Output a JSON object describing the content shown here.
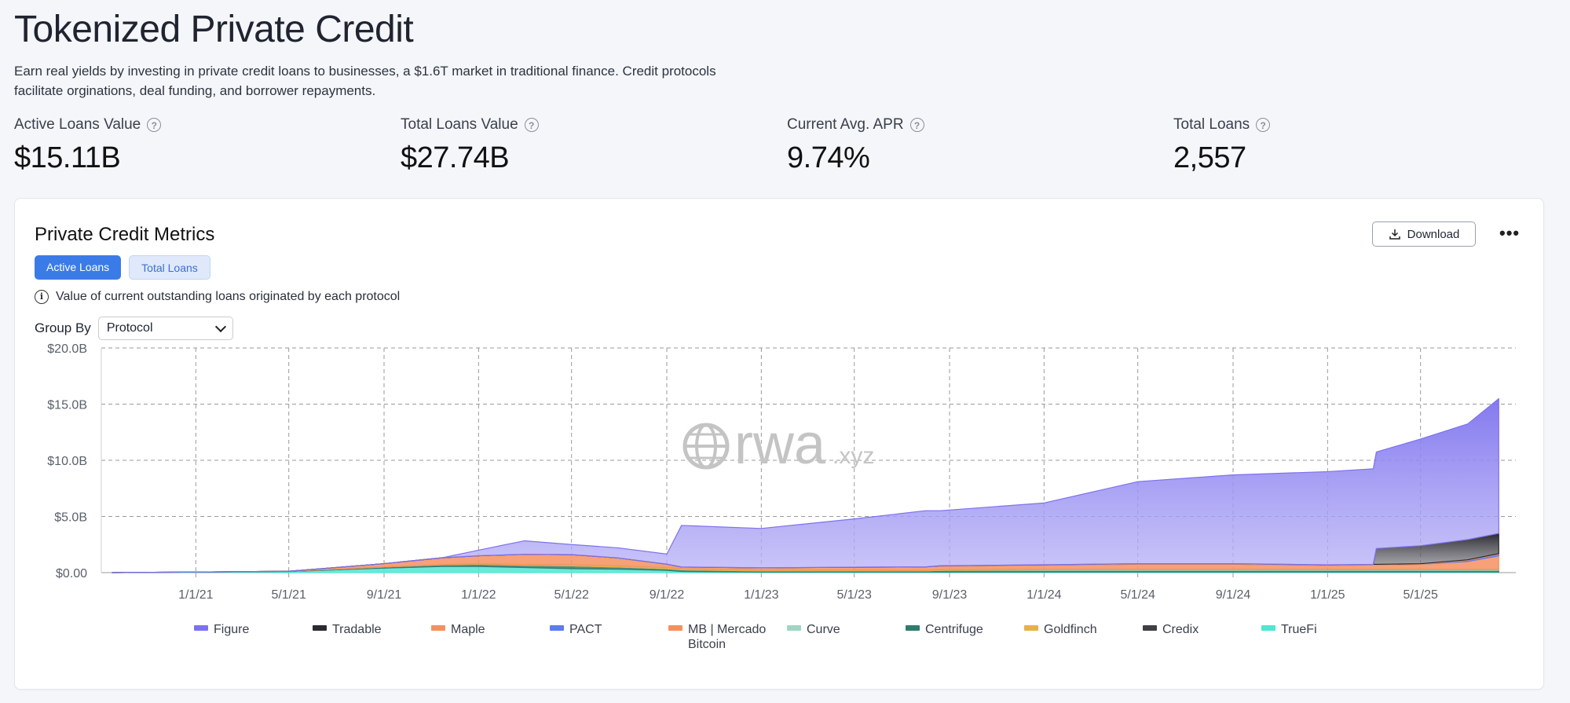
{
  "page": {
    "title": "Tokenized Private Credit",
    "description": "Earn real yields by investing in private credit loans to businesses, a $1.6T market in traditional finance. Credit protocols facilitate orginations, deal funding, and borrower repayments."
  },
  "stats": [
    {
      "label": "Active Loans Value",
      "value": "$15.11B"
    },
    {
      "label": "Total Loans Value",
      "value": "$27.74B"
    },
    {
      "label": "Current Avg. APR",
      "value": "9.74%"
    },
    {
      "label": "Total Loans",
      "value": "2,557"
    }
  ],
  "help_icon": "?",
  "card": {
    "title": "Private Credit Metrics",
    "download_label": "Download",
    "more_icon": "•••",
    "tabs": [
      {
        "label": "Active Loans",
        "active": true
      },
      {
        "label": "Total Loans",
        "active": false
      }
    ],
    "info_text": "Value of current outstanding loans originated by each protocol",
    "group_by_label": "Group By",
    "group_by_value": "Protocol"
  },
  "watermark": {
    "main": "rwa",
    "suffix": ".xyz"
  },
  "colors": {
    "figure": "#7d72ee",
    "tradable": "#2b2b33",
    "maple": "#f59160",
    "pact": "#5c7cf0",
    "mb_mercado": "#f5905e",
    "curve": "#9fd6c3",
    "centrifuge": "#2f7c6e",
    "goldfinch": "#e8b04a",
    "credix": "#3f3f46",
    "truefi": "#4fe6d2"
  },
  "chart_data": {
    "type": "area",
    "stacked": true,
    "y_ticks": [
      "$20.0B",
      "$15.0B",
      "$10.0B",
      "$5.0B",
      "$0.00"
    ],
    "ylim": [
      0,
      20
    ],
    "x_ticks": [
      "1/1/21",
      "5/1/21",
      "9/1/21",
      "1/1/22",
      "5/1/22",
      "9/1/22",
      "1/1/23",
      "5/1/23",
      "9/1/23",
      "1/1/24",
      "5/1/24",
      "9/1/24",
      "1/1/25",
      "5/1/25"
    ],
    "x_range": [
      "2020-09-01",
      "2025-09-01"
    ],
    "grid": true,
    "legend_position": "bottom",
    "x": [
      "2020-09-15",
      "2021-01-01",
      "2021-05-01",
      "2021-09-01",
      "2021-11-15",
      "2022-01-01",
      "2022-03-01",
      "2022-05-01",
      "2022-07-01",
      "2022-09-01",
      "2022-09-20",
      "2023-01-01",
      "2023-05-01",
      "2023-08-01",
      "2023-08-20",
      "2024-01-01",
      "2024-05-01",
      "2024-09-01",
      "2025-01-01",
      "2025-03-01",
      "2025-03-05",
      "2025-05-01",
      "2025-07-01",
      "2025-08-10"
    ],
    "series": [
      {
        "name": "TrueFi",
        "values": [
          0.0,
          0.05,
          0.1,
          0.4,
          0.55,
          0.55,
          0.45,
          0.35,
          0.3,
          0.2,
          0.1,
          0.05,
          0.05,
          0.05,
          0.05,
          0.05,
          0.05,
          0.05,
          0.05,
          0.05,
          0.05,
          0.05,
          0.05,
          0.05
        ]
      },
      {
        "name": "Centrifuge",
        "values": [
          0.0,
          0.0,
          0.02,
          0.1,
          0.15,
          0.2,
          0.2,
          0.25,
          0.2,
          0.15,
          0.15,
          0.1,
          0.1,
          0.1,
          0.15,
          0.15,
          0.15,
          0.15,
          0.15,
          0.15,
          0.15,
          0.15,
          0.15,
          0.15
        ]
      },
      {
        "name": "Curve",
        "values": [
          0.0,
          0.0,
          0.0,
          0.0,
          0.0,
          0.0,
          0.0,
          0.0,
          0.0,
          0.0,
          0.0,
          0.0,
          0.0,
          0.0,
          0.0,
          0.05,
          0.05,
          0.05,
          0.05,
          0.05,
          0.05,
          0.05,
          0.05,
          0.05
        ]
      },
      {
        "name": "Goldfinch",
        "values": [
          0.0,
          0.0,
          0.0,
          0.0,
          0.02,
          0.05,
          0.08,
          0.1,
          0.1,
          0.1,
          0.1,
          0.08,
          0.08,
          0.06,
          0.06,
          0.05,
          0.05,
          0.05,
          0.04,
          0.04,
          0.04,
          0.04,
          0.04,
          0.04
        ]
      },
      {
        "name": "Maple",
        "values": [
          0.0,
          0.0,
          0.0,
          0.3,
          0.6,
          0.7,
          0.9,
          0.9,
          0.7,
          0.3,
          0.15,
          0.2,
          0.25,
          0.3,
          0.3,
          0.35,
          0.45,
          0.45,
          0.35,
          0.4,
          0.4,
          0.45,
          0.7,
          1.2
        ]
      },
      {
        "name": "PACT",
        "values": [
          0.0,
          0.0,
          0.0,
          0.0,
          0.0,
          0.0,
          0.0,
          0.0,
          0.0,
          0.0,
          0.0,
          0.0,
          0.0,
          0.0,
          0.0,
          0.0,
          0.0,
          0.0,
          0.0,
          0.0,
          0.0,
          0.0,
          0.1,
          0.15
        ]
      },
      {
        "name": "MB | Mercado Bitcoin",
        "values": [
          0.0,
          0.0,
          0.0,
          0.0,
          0.0,
          0.0,
          0.0,
          0.0,
          0.0,
          0.0,
          0.0,
          0.0,
          0.0,
          0.0,
          0.05,
          0.05,
          0.05,
          0.05,
          0.05,
          0.05,
          0.05,
          0.05,
          0.05,
          0.05
        ]
      },
      {
        "name": "Credix",
        "values": [
          0.0,
          0.0,
          0.0,
          0.0,
          0.0,
          0.0,
          0.0,
          0.0,
          0.0,
          0.0,
          0.0,
          0.0,
          0.0,
          0.0,
          0.0,
          0.0,
          0.0,
          0.0,
          0.0,
          0.0,
          0.0,
          0.0,
          0.0,
          0.0
        ]
      },
      {
        "name": "Tradable",
        "values": [
          0.0,
          0.0,
          0.0,
          0.0,
          0.0,
          0.0,
          0.0,
          0.0,
          0.0,
          0.0,
          0.0,
          0.0,
          0.0,
          0.0,
          0.0,
          0.0,
          0.0,
          0.0,
          0.0,
          0.0,
          1.4,
          1.6,
          1.8,
          1.8
        ]
      },
      {
        "name": "Figure",
        "values": [
          0.0,
          0.0,
          0.0,
          0.0,
          0.0,
          0.5,
          1.2,
          0.9,
          0.9,
          0.9,
          3.7,
          3.5,
          4.3,
          5.0,
          4.9,
          5.5,
          7.3,
          7.9,
          8.3,
          8.5,
          8.6,
          9.5,
          10.3,
          12.0
        ]
      }
    ],
    "legend": [
      {
        "name": "Figure",
        "color": "#7d72ee"
      },
      {
        "name": "Tradable",
        "color": "#2b2b33"
      },
      {
        "name": "Maple",
        "color": "#f59160"
      },
      {
        "name": "PACT",
        "color": "#5c7cf0"
      },
      {
        "name": "MB | Mercado Bitcoin",
        "color": "#f5905e"
      },
      {
        "name": "Curve",
        "color": "#9fd6c3"
      },
      {
        "name": "Centrifuge",
        "color": "#2f7c6e"
      },
      {
        "name": "Goldfinch",
        "color": "#e8b04a"
      },
      {
        "name": "Credix",
        "color": "#3f3f46"
      },
      {
        "name": "TrueFi",
        "color": "#4fe6d2"
      }
    ]
  }
}
